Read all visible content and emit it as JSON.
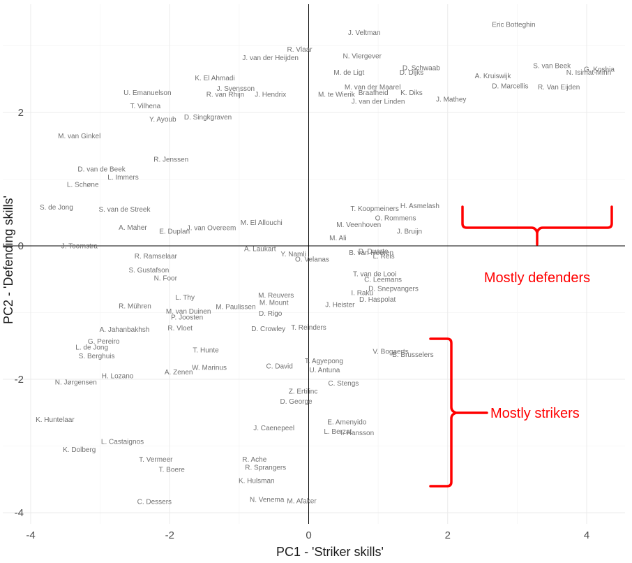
{
  "chart_data": {
    "type": "scatter",
    "title": "",
    "xlabel": "PC1 - 'Striker skills'",
    "ylabel": "PC2 - 'Defending skills'",
    "xlim": [
      -4,
      4.5
    ],
    "ylim": [
      -4.1,
      3.4
    ],
    "x_ticks": [
      -4,
      -2,
      0,
      2,
      4
    ],
    "y_ticks": [
      -4,
      -2,
      0,
      2
    ],
    "x_tick_labels": [
      "-4",
      "-2",
      "0",
      "2",
      "4"
    ],
    "y_tick_labels": [
      "-4",
      "-2",
      "0",
      "2"
    ],
    "grid": true,
    "reference_lines": {
      "x": 0,
      "y": 0
    },
    "points": [
      {
        "label": "Eric Botteghin",
        "x": 2.95,
        "y": 3.32
      },
      {
        "label": "J. Veltman",
        "x": 0.8,
        "y": 3.2
      },
      {
        "label": "R. Vlaar",
        "x": -0.13,
        "y": 2.95
      },
      {
        "label": "J. van der Heijden",
        "x": -0.55,
        "y": 2.82
      },
      {
        "label": "N. Viergever",
        "x": 0.77,
        "y": 2.85
      },
      {
        "label": "S. van Beek",
        "x": 3.5,
        "y": 2.7
      },
      {
        "label": "G. Koshia",
        "x": 4.18,
        "y": 2.65
      },
      {
        "label": "N. Isimat-Mirin",
        "x": 4.03,
        "y": 2.6
      },
      {
        "label": "D. Schwaab",
        "x": 1.62,
        "y": 2.67
      },
      {
        "label": "M. de Ligt",
        "x": 0.58,
        "y": 2.6
      },
      {
        "label": "D. Dijks",
        "x": 1.48,
        "y": 2.6
      },
      {
        "label": "A. Kruiswijk",
        "x": 2.65,
        "y": 2.55
      },
      {
        "label": "K. El Ahmadi",
        "x": -1.35,
        "y": 2.52
      },
      {
        "label": "M. van der Maarel",
        "x": 0.92,
        "y": 2.38
      },
      {
        "label": "D. Marcellis",
        "x": 2.9,
        "y": 2.4
      },
      {
        "label": "R. Van Eijden",
        "x": 3.6,
        "y": 2.38
      },
      {
        "label": "J. Svensson",
        "x": -1.05,
        "y": 2.36
      },
      {
        "label": "U. Emanuelson",
        "x": -2.32,
        "y": 2.3
      },
      {
        "label": "R. van Rhijn",
        "x": -1.2,
        "y": 2.27
      },
      {
        "label": "J. Hendrix",
        "x": -0.55,
        "y": 2.27
      },
      {
        "label": "M. te Wierik",
        "x": 0.4,
        "y": 2.27
      },
      {
        "label": "K. Diks",
        "x": 1.48,
        "y": 2.3
      },
      {
        "label": "Braafheid",
        "x": 0.93,
        "y": 2.3
      },
      {
        "label": "J. van der Linden",
        "x": 1.0,
        "y": 2.17
      },
      {
        "label": "T. Vilhena",
        "x": -2.35,
        "y": 2.1
      },
      {
        "label": "J. Mathey",
        "x": 2.05,
        "y": 2.2
      },
      {
        "label": "M. van Ginkel",
        "x": -3.3,
        "y": 1.65
      },
      {
        "label": "Y. Ayoub",
        "x": -2.1,
        "y": 1.9
      },
      {
        "label": "D. Singkgraven",
        "x": -1.45,
        "y": 1.93
      },
      {
        "label": "R. Jenssen",
        "x": -1.98,
        "y": 1.3
      },
      {
        "label": "D. van de Beek",
        "x": -2.98,
        "y": 1.15
      },
      {
        "label": "L. Immers",
        "x": -2.67,
        "y": 1.03
      },
      {
        "label": "L. Schøne",
        "x": -3.25,
        "y": 0.92
      },
      {
        "label": "S. de Jong",
        "x": -3.63,
        "y": 0.58
      },
      {
        "label": "S. van de Streek",
        "x": -2.65,
        "y": 0.55
      },
      {
        "label": "A. Maher",
        "x": -2.53,
        "y": 0.28
      },
      {
        "label": "E. Duplan",
        "x": -1.93,
        "y": 0.22
      },
      {
        "label": "J. van Overeem",
        "x": -1.4,
        "y": 0.27
      },
      {
        "label": "M. El Allouchi",
        "x": -0.68,
        "y": 0.35
      },
      {
        "label": "M. Veenhoven",
        "x": 0.72,
        "y": 0.32
      },
      {
        "label": "O. Rommens",
        "x": 1.25,
        "y": 0.42
      },
      {
        "label": "J. Bruijn",
        "x": 1.45,
        "y": 0.22
      },
      {
        "label": "M. Ali",
        "x": 0.42,
        "y": 0.12
      },
      {
        "label": "T. Koopmeiners",
        "x": 0.95,
        "y": 0.56
      },
      {
        "label": "H. Asmelash",
        "x": 1.6,
        "y": 0.6
      },
      {
        "label": "J. Toornstra",
        "x": -3.3,
        "y": 0.0
      },
      {
        "label": "R. Ramselaar",
        "x": -2.2,
        "y": -0.15
      },
      {
        "label": "S. Gustafson",
        "x": -2.3,
        "y": -0.36
      },
      {
        "label": "N. Foor",
        "x": -2.06,
        "y": -0.48
      },
      {
        "label": "R. Mühren",
        "x": -2.5,
        "y": -0.9
      },
      {
        "label": "L. Thy",
        "x": -1.78,
        "y": -0.77
      },
      {
        "label": "M. van Duinen",
        "x": -1.73,
        "y": -0.98
      },
      {
        "label": "A. Laukart",
        "x": -0.7,
        "y": -0.04
      },
      {
        "label": "Y. Namli",
        "x": -0.22,
        "y": -0.12
      },
      {
        "label": "O. Velanas",
        "x": 0.05,
        "y": -0.2
      },
      {
        "label": "B. van Heeren",
        "x": 0.9,
        "y": -0.1
      },
      {
        "label": "D. Duarte",
        "x": 0.93,
        "y": -0.08
      },
      {
        "label": "L. Reis",
        "x": 1.08,
        "y": -0.15
      },
      {
        "label": "T. van de Looi",
        "x": 0.95,
        "y": -0.42
      },
      {
        "label": "C. Leemans",
        "x": 1.07,
        "y": -0.5
      },
      {
        "label": "D. Snepvangers",
        "x": 1.22,
        "y": -0.64
      },
      {
        "label": "D. Haspolat",
        "x": 0.99,
        "y": -0.8
      },
      {
        "label": "I. Raku",
        "x": 0.77,
        "y": -0.7
      },
      {
        "label": "J. Heister",
        "x": 0.45,
        "y": -0.88
      },
      {
        "label": "M. Reuvers",
        "x": -0.47,
        "y": -0.74
      },
      {
        "label": "M. Mount",
        "x": -0.5,
        "y": -0.85
      },
      {
        "label": "M. Paulissen",
        "x": -1.05,
        "y": -0.91
      },
      {
        "label": "D. Rigo",
        "x": -0.55,
        "y": -1.01
      },
      {
        "label": "A. Jahanbakhsh",
        "x": -2.65,
        "y": -1.25
      },
      {
        "label": "G. Pereiro",
        "x": -2.95,
        "y": -1.43
      },
      {
        "label": "L. de Jong",
        "x": -3.12,
        "y": -1.52
      },
      {
        "label": "S. Berghuis",
        "x": -3.05,
        "y": -1.65
      },
      {
        "label": "H. Lozano",
        "x": -2.75,
        "y": -1.95
      },
      {
        "label": "N. Jørgensen",
        "x": -3.35,
        "y": -2.04
      },
      {
        "label": "K. Huntelaar",
        "x": -3.65,
        "y": -2.6
      },
      {
        "label": "K. Dolberg",
        "x": -3.3,
        "y": -3.05
      },
      {
        "label": "L. Castaignos",
        "x": -2.68,
        "y": -2.93
      },
      {
        "label": "T. Vermeer",
        "x": -2.2,
        "y": -3.2
      },
      {
        "label": "T. Boere",
        "x": -1.97,
        "y": -3.35
      },
      {
        "label": "C. Dessers",
        "x": -2.22,
        "y": -3.83
      },
      {
        "label": "N. Venema",
        "x": -0.6,
        "y": -3.8
      },
      {
        "label": "M. Afaker",
        "x": -0.1,
        "y": -3.82
      },
      {
        "label": "R. Vloet",
        "x": -1.85,
        "y": -1.23
      },
      {
        "label": "T. Reinders",
        "x": 0.0,
        "y": -1.22
      },
      {
        "label": "D. Crowley",
        "x": -0.58,
        "y": -1.24
      },
      {
        "label": "T. Hunte",
        "x": -1.48,
        "y": -1.56
      },
      {
        "label": "V. Bogaerts",
        "x": 1.18,
        "y": -1.58
      },
      {
        "label": "B. Brusselers",
        "x": 1.5,
        "y": -1.63
      },
      {
        "label": "T. Agyepong",
        "x": 0.22,
        "y": -1.72
      },
      {
        "label": "U. Antuna",
        "x": 0.23,
        "y": -1.86
      },
      {
        "label": "C. David",
        "x": -0.42,
        "y": -1.8
      },
      {
        "label": "C. Stengs",
        "x": 0.5,
        "y": -2.06
      },
      {
        "label": "Z. Ertilinc",
        "x": -0.08,
        "y": -2.18
      },
      {
        "label": "D. George",
        "x": -0.18,
        "y": -2.33
      },
      {
        "label": "E. Amenyido",
        "x": 0.55,
        "y": -2.64
      },
      {
        "label": "L. Berzat",
        "x": 0.42,
        "y": -2.78
      },
      {
        "label": "I. Hansson",
        "x": 0.7,
        "y": -2.8
      },
      {
        "label": "J. Caenepeel",
        "x": -0.5,
        "y": -2.73
      },
      {
        "label": "R. Ache",
        "x": -0.78,
        "y": -3.2
      },
      {
        "label": "R. Sprangers",
        "x": -0.62,
        "y": -3.32
      },
      {
        "label": "K. Hulsman",
        "x": -0.75,
        "y": -3.52
      },
      {
        "label": "P. Joosten",
        "x": -1.75,
        "y": -1.07
      },
      {
        "label": "W. Marinus",
        "x": -1.43,
        "y": -1.82
      },
      {
        "label": "A. Zenen",
        "x": -1.87,
        "y": -1.89
      }
    ]
  },
  "annotations": {
    "defenders_label": "Mostly defenders",
    "strikers_label": "Mostly strikers"
  }
}
